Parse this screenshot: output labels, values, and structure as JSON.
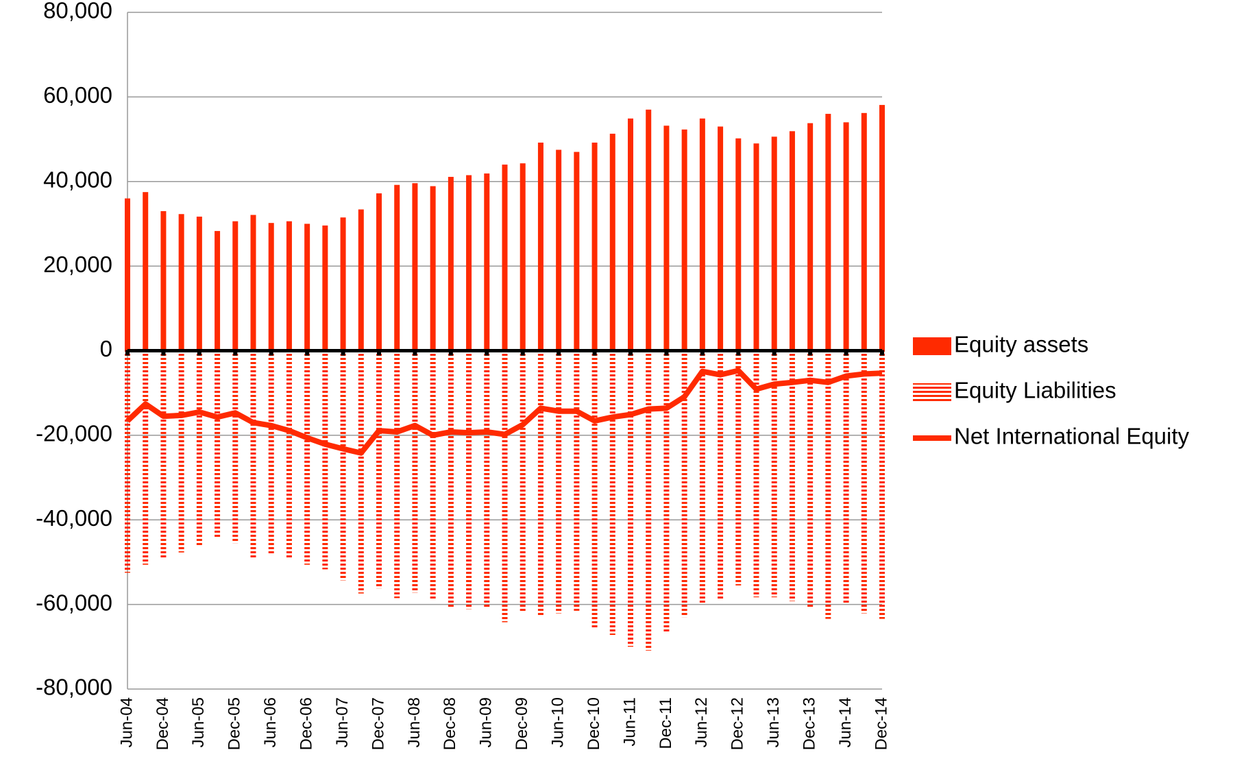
{
  "chart_data": {
    "type": "bar_line",
    "categories": [
      "Jun-04",
      null,
      "Dec-04",
      null,
      "Jun-05",
      null,
      "Dec-05",
      null,
      "Jun-06",
      null,
      "Dec-06",
      null,
      "Jun-07",
      null,
      "Dec-07",
      null,
      "Jun-08",
      null,
      "Dec-08",
      null,
      "Jun-09",
      null,
      "Dec-09",
      null,
      "Jun-10",
      null,
      "Dec-10",
      null,
      "Jun-11",
      null,
      "Dec-11",
      null,
      "Jun-12",
      null,
      "Dec-12",
      null,
      "Jun-13",
      null,
      "Dec-13",
      null,
      "Jun-14",
      null,
      "Dec-14"
    ],
    "series": [
      {
        "name": "Equity assets",
        "type": "bar",
        "color": "#ff2a00",
        "values": [
          36000,
          37500,
          33000,
          32300,
          31700,
          28300,
          30600,
          32100,
          30200,
          30600,
          30000,
          29600,
          31500,
          33400,
          37200,
          39200,
          39600,
          38900,
          41100,
          41500,
          41900,
          44000,
          44300,
          49200,
          47500,
          47000,
          49200,
          51300,
          54900,
          57000,
          53200,
          52300,
          54900,
          53000,
          50200,
          49000,
          50600,
          51900,
          53800,
          56000,
          54000,
          56200,
          58100
        ]
      },
      {
        "name": "Equity Liabilities",
        "type": "bar",
        "pattern": "horizontal-stripes",
        "color": "#ff2a00",
        "values": [
          -52500,
          -50600,
          -48900,
          -47700,
          -46400,
          -44500,
          -45500,
          -49200,
          -47900,
          -49200,
          -50600,
          -51700,
          -54300,
          -57400,
          -56200,
          -58500,
          -57200,
          -58700,
          -60600,
          -61100,
          -60900,
          -64200,
          -61900,
          -62800,
          -62100,
          -61500,
          -65800,
          -67200,
          -70000,
          -70900,
          -66800,
          -63000,
          -59600,
          -58700,
          -55500,
          -58300,
          -58300,
          -59200,
          -60600,
          -63400,
          -60000,
          -62100,
          -63400
        ]
      },
      {
        "name": "Net International Equity",
        "type": "line",
        "color": "#ff2a00",
        "values": [
          -16600,
          -12600,
          -15500,
          -15300,
          -14500,
          -15700,
          -14700,
          -17000,
          -17700,
          -18900,
          -20600,
          -22100,
          -23200,
          -24200,
          -18900,
          -19200,
          -17700,
          -20000,
          -19200,
          -19400,
          -19200,
          -19800,
          -17500,
          -13600,
          -14300,
          -14300,
          -16600,
          -15700,
          -15100,
          -13800,
          -13600,
          -10900,
          -4900,
          -5700,
          -4700,
          -9100,
          -7900,
          -7500,
          -7000,
          -7500,
          -6000,
          -5500,
          -5300
        ]
      }
    ],
    "ylim": [
      -80000,
      80000
    ],
    "yticks": [
      {
        "value": -80000,
        "label": "-80,000"
      },
      {
        "value": -60000,
        "label": "-60,000"
      },
      {
        "value": -40000,
        "label": "-40,000"
      },
      {
        "value": -20000,
        "label": "-20,000"
      },
      0,
      {
        "value": 20000,
        "label": "20,000"
      },
      {
        "value": 40000,
        "label": "40,000"
      },
      {
        "value": 60000,
        "label": "60,000"
      },
      {
        "value": 80000,
        "label": "80,000"
      }
    ],
    "grid": true,
    "legend": "right"
  }
}
